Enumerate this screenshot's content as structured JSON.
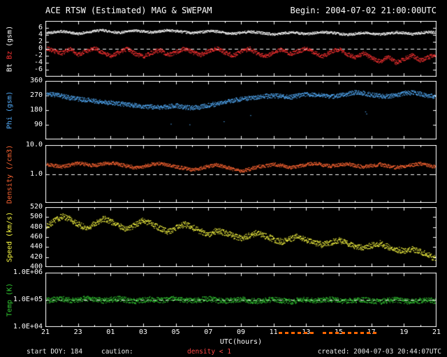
{
  "header": {
    "title": "ACE RTSW (Estimated) MAG & SWEPAM",
    "begin": "Begin: 2004-07-02 21:00:00UTC"
  },
  "footer": {
    "start_doy": "start DOY: 184",
    "caution_label": "caution:",
    "density_caution": "density < 1",
    "created": "created: 2004-07-03 20:44:07UTC"
  },
  "chart_data": {
    "type": "scatter",
    "title": "ACE RTSW (Estimated) MAG & SWEPAM",
    "xlabel": "UTC(hours)",
    "x_range_hours": [
      0,
      24
    ],
    "x_tick_hours": [
      0,
      2,
      4,
      6,
      8,
      10,
      12,
      14,
      16,
      18,
      20,
      22,
      24
    ],
    "x_tick_labels": [
      "21",
      "23",
      "01",
      "03",
      "05",
      "07",
      "09",
      "11",
      "13",
      "15",
      "17",
      "19",
      "21"
    ],
    "caution_intervals_hours": [
      [
        14.3,
        16.6
      ],
      [
        17.0,
        20.3
      ]
    ],
    "caution_color": "#ff6600",
    "x_hours": [
      0,
      0.5,
      1,
      1.5,
      2,
      2.5,
      3,
      3.5,
      4,
      4.5,
      5,
      5.5,
      6,
      6.5,
      7,
      7.5,
      8,
      8.5,
      9,
      9.5,
      10,
      10.5,
      11,
      11.5,
      12,
      12.5,
      13,
      13.5,
      14,
      14.5,
      15,
      15.5,
      16,
      16.5,
      17,
      17.5,
      18,
      18.5,
      19,
      19.5,
      20,
      20.5,
      21,
      21.5,
      22,
      22.5,
      23,
      23.5,
      24
    ],
    "panels": [
      {
        "name": "bt-bz",
        "ylabel_parts": [
          {
            "text": "Bt",
            "color": "#ffffff"
          },
          {
            "text": "Bz",
            "color": "#ff3333"
          },
          {
            "text": "(gsm)",
            "color": "#ffffff"
          }
        ],
        "scale": "linear",
        "ylim": [
          -8,
          8
        ],
        "ytick_values": [
          6,
          4,
          2,
          0,
          -2,
          -4,
          -6
        ],
        "ytick_labels": [
          "6",
          "4",
          "2",
          "0",
          "-2",
          "-4",
          "-6"
        ],
        "ref_line": 0,
        "series": [
          {
            "name": "Bt",
            "color": "#ffffff",
            "noise": 0.35,
            "values": [
              4.6,
              4.9,
              5.1,
              4.7,
              4.4,
              4.8,
              5.2,
              5.4,
              5.0,
              4.7,
              5.0,
              5.3,
              5.1,
              4.8,
              5.1,
              5.4,
              5.2,
              4.9,
              4.6,
              4.9,
              5.2,
              5.0,
              4.7,
              4.4,
              4.7,
              5.0,
              4.8,
              4.5,
              4.2,
              4.5,
              4.8,
              4.6,
              4.3,
              4.6,
              4.9,
              4.7,
              4.4,
              4.1,
              4.4,
              4.7,
              4.5,
              4.2,
              4.5,
              4.8,
              4.6,
              4.3,
              4.6,
              4.9,
              4.7
            ]
          },
          {
            "name": "Bz",
            "color": "#ff3333",
            "noise": 0.6,
            "values": [
              0.4,
              -0.6,
              -1.2,
              0.1,
              -1.6,
              -0.7,
              0.3,
              -1.1,
              -2.0,
              -0.9,
              0.1,
              -1.4,
              -2.1,
              -1.0,
              -0.3,
              -1.7,
              -0.9,
              0.2,
              -0.9,
              -1.7,
              -0.5,
              0.3,
              -1.0,
              -1.9,
              -0.7,
              0.1,
              -1.3,
              -2.1,
              -0.9,
              -0.1,
              -1.4,
              -0.6,
              0.2,
              -1.2,
              -2.0,
              -0.8,
              0.0,
              -1.5,
              -2.4,
              -1.2,
              -2.6,
              -3.6,
              -2.2,
              -3.9,
              -2.8,
              -1.8,
              -3.3,
              -2.3,
              -1.4
            ]
          }
        ]
      },
      {
        "name": "phi",
        "ylabel_parts": [
          {
            "text": "Phi",
            "color": "#55b0ff"
          },
          {
            "text": "(gsm)",
            "color": "#55b0ff"
          }
        ],
        "scale": "linear",
        "ylim": [
          0,
          360
        ],
        "ytick_values": [
          360,
          270,
          180,
          90
        ],
        "ytick_labels": [
          "360",
          "270",
          "180",
          "90"
        ],
        "ref_line": null,
        "series": [
          {
            "name": "Phi",
            "color": "#55b0ff",
            "noise": 14,
            "outlier": {
              "p": 0.003,
              "dv": -110
            },
            "values": [
              285,
              278,
              268,
              258,
              250,
              244,
              238,
              232,
              227,
              222,
              216,
              210,
              206,
              202,
              198,
              204,
              210,
              201,
              195,
              201,
              212,
              221,
              231,
              241,
              250,
              256,
              262,
              267,
              271,
              266,
              261,
              271,
              281,
              276,
              270,
              265,
              271,
              281,
              291,
              286,
              276,
              270,
              266,
              276,
              286,
              291,
              281,
              271,
              266
            ]
          }
        ]
      },
      {
        "name": "density",
        "ylabel_parts": [
          {
            "text": "Density",
            "color": "#ff6633"
          },
          {
            "text": "(/cm3)",
            "color": "#ff6633"
          }
        ],
        "scale": "log",
        "ylim": [
          0.1,
          10
        ],
        "ytick_values": [
          10,
          1
        ],
        "ytick_labels": [
          "10.0",
          "1.0"
        ],
        "ref_line": 1,
        "series": [
          {
            "name": "Density",
            "color": "#ff6633",
            "noise": 0.06,
            "values": [
              2.2,
              2.0,
              1.8,
              2.1,
              2.4,
              2.2,
              2.0,
              2.3,
              2.5,
              2.2,
              1.9,
              1.7,
              1.9,
              2.2,
              2.4,
              2.1,
              1.8,
              1.6,
              1.4,
              1.6,
              1.9,
              2.1,
              1.8,
              1.5,
              1.3,
              1.5,
              1.8,
              2.0,
              2.2,
              2.0,
              1.7,
              1.9,
              2.2,
              2.4,
              2.1,
              1.9,
              2.1,
              2.3,
              2.0,
              1.8,
              2.0,
              2.2,
              1.9,
              1.7,
              1.9,
              2.1,
              2.3,
              2.0,
              1.8
            ]
          }
        ]
      },
      {
        "name": "speed",
        "ylabel_parts": [
          {
            "text": "Speed",
            "color": "#ffff44"
          },
          {
            "text": "(km/s)",
            "color": "#ffff44"
          }
        ],
        "scale": "linear",
        "ylim": [
          400,
          520
        ],
        "ytick_values": [
          520,
          500,
          480,
          460,
          440,
          420,
          400
        ],
        "ytick_labels": [
          "520",
          "500",
          "480",
          "460",
          "440",
          "420",
          "400"
        ],
        "ref_line": null,
        "series": [
          {
            "name": "Speed",
            "color": "#ffff44",
            "noise": 6,
            "values": [
              482,
              492,
              502,
              496,
              486,
              478,
              488,
              498,
              492,
              483,
              476,
              486,
              494,
              487,
              478,
              471,
              479,
              486,
              480,
              472,
              466,
              474,
              469,
              463,
              458,
              464,
              470,
              462,
              456,
              451,
              457,
              462,
              455,
              449,
              445,
              450,
              455,
              448,
              442,
              438,
              444,
              448,
              441,
              436,
              432,
              437,
              431,
              424,
              416
            ]
          }
        ]
      },
      {
        "name": "temp",
        "ylabel_parts": [
          {
            "text": "Temp",
            "color": "#33cc33"
          },
          {
            "text": "(K)",
            "color": "#33cc33"
          }
        ],
        "scale": "log",
        "ylim": [
          10000,
          1000000
        ],
        "ytick_values": [
          1000000,
          100000,
          10000
        ],
        "ytick_labels": [
          "1.0E+06",
          "1.0E+05",
          "1.0E+04"
        ],
        "ref_line": 100000,
        "series": [
          {
            "name": "Temp",
            "color": "#33cc33",
            "noise": 0.1,
            "values": [
              95000,
              105000,
              112000,
              98000,
              103000,
              116000,
              108000,
              96000,
              104000,
              113000,
              100000,
              92000,
              101000,
              110000,
              97000,
              105000,
              114000,
              99000,
              94000,
              103000,
              111000,
              98000,
              92000,
              100000,
              108000,
              96000,
              90000,
              99000,
              107000,
              95000,
              89000,
              98000,
              106000,
              94000,
              100000,
              108000,
              96000,
              91000,
              99000,
              105000,
              93000,
              88000,
              97000,
              104000,
              92000,
              87000,
              96000,
              102000,
              90000
            ]
          }
        ]
      }
    ]
  }
}
